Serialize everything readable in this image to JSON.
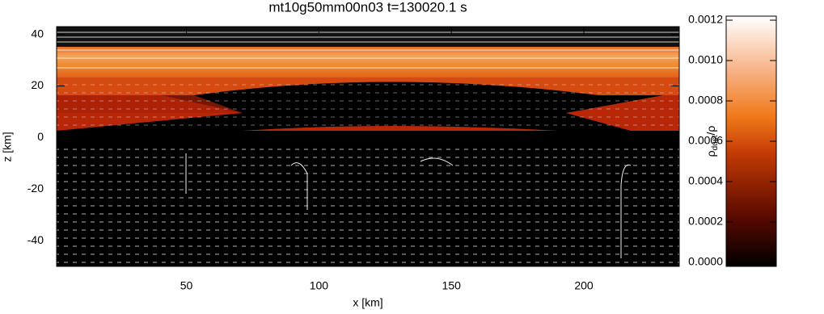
{
  "chart_data": {
    "type": "heatmap",
    "title": "mt10g50mm00n03  t=130020.1 s",
    "xlabel": "x [km]",
    "ylabel": "z [km]",
    "xlim": [
      1,
      236
    ],
    "xticks": [
      50,
      100,
      150,
      200
    ],
    "ylim": [
      -50,
      43
    ],
    "yticks": [
      -40,
      -20,
      0,
      20,
      40
    ],
    "colorbar": {
      "label": {
        "main": "ρ",
        "sub": "dust",
        "tail": "/ρ"
      },
      "clim": [
        -2e-05,
        0.00122
      ],
      "ticks": [
        {
          "value": 0,
          "label": "0.0000"
        },
        {
          "value": 0.0002,
          "label": "0.0002"
        },
        {
          "value": 0.0004,
          "label": "0.0004"
        },
        {
          "value": 0.0006,
          "label": "0.0006"
        },
        {
          "value": 0.0008,
          "label": "0.0008"
        },
        {
          "value": 0.001,
          "label": "0.0010"
        },
        {
          "value": 0.0012,
          "label": "0.0012"
        }
      ]
    }
  }
}
